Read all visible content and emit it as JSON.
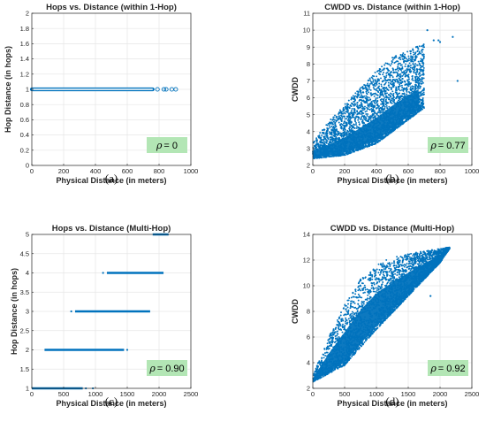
{
  "colors": {
    "series": "#0072BD",
    "annotation_bg": "#b3e6b5",
    "grid": "#e6e6e6",
    "axis": "#262626"
  },
  "chart_data": [
    {
      "id": "a",
      "type": "scatter",
      "title": "Hops vs. Distance (within 1-Hop)",
      "xlabel": "Physical Distance (in meters)",
      "ylabel": "Hop Distance (in hops)",
      "xlim": [
        0,
        1000
      ],
      "ylim": [
        0,
        2
      ],
      "xticks": [
        0,
        200,
        400,
        600,
        800,
        1000
      ],
      "yticks": [
        0,
        0.2,
        0.4,
        0.6,
        0.8,
        1,
        1.2,
        1.4,
        1.6,
        1.8,
        2
      ],
      "ytick_labels": [
        "0",
        "0.2",
        "0.4",
        "0.6",
        "0.8",
        "1",
        "1.2",
        "1.4",
        "1.6",
        "1.8",
        "2"
      ],
      "grid": true,
      "marker": "open-circle",
      "series": [
        {
          "bands": [
            {
              "y": 1,
              "x_range": [
                0,
                760
              ]
            }
          ],
          "points": [
            {
              "x": 790,
              "y": 1
            },
            {
              "x": 830,
              "y": 1
            },
            {
              "x": 845,
              "y": 1
            },
            {
              "x": 880,
              "y": 1
            },
            {
              "x": 905,
              "y": 1
            }
          ]
        }
      ],
      "annotation": {
        "symbol": "ρ",
        "text": "= 0",
        "position": "bottom-right"
      },
      "caption": "(a)"
    },
    {
      "id": "b",
      "type": "scatter",
      "title": "CWDD vs. Distance (within 1-Hop)",
      "xlabel": "Physical Distance (in meters)",
      "ylabel": "CWDD",
      "xlim": [
        0,
        1000
      ],
      "ylim": [
        2,
        11
      ],
      "xticks": [
        0,
        200,
        400,
        600,
        800,
        1000
      ],
      "yticks": [
        2,
        3,
        4,
        5,
        6,
        7,
        8,
        9,
        10,
        11
      ],
      "grid": true,
      "marker": "dot",
      "series": [
        {
          "cloud": {
            "x_range": [
              0,
              700
            ],
            "lower_edge": [
              [
                0,
                2.4
              ],
              [
                200,
                2.6
              ],
              [
                400,
                3.3
              ],
              [
                600,
                4.7
              ],
              [
                700,
                5.4
              ]
            ],
            "upper_edge": [
              [
                0,
                3.4
              ],
              [
                100,
                4.6
              ],
              [
                200,
                5.6
              ],
              [
                300,
                6.6
              ],
              [
                400,
                7.6
              ],
              [
                500,
                8.4
              ],
              [
                600,
                8.8
              ],
              [
                700,
                9.2
              ]
            ]
          },
          "points": [
            {
              "x": 720,
              "y": 10
            },
            {
              "x": 760,
              "y": 9.4
            },
            {
              "x": 790,
              "y": 9.4
            },
            {
              "x": 800,
              "y": 9.3
            },
            {
              "x": 880,
              "y": 9.6
            },
            {
              "x": 910,
              "y": 7
            },
            {
              "x": 690,
              "y": 8.2
            },
            {
              "x": 650,
              "y": 9.0
            }
          ]
        }
      ],
      "annotation": {
        "symbol": "ρ",
        "text": "= 0.77",
        "position": "bottom-right"
      },
      "caption": "(b)"
    },
    {
      "id": "c",
      "type": "scatter",
      "title": "Hops vs. Distance (Multi-Hop)",
      "xlabel": "Physical Distance (in meters)",
      "ylabel": "Hop Distance (in hops)",
      "xlim": [
        0,
        2500
      ],
      "ylim": [
        1,
        5
      ],
      "xticks": [
        0,
        500,
        1000,
        1500,
        2000,
        2500
      ],
      "yticks": [
        1,
        1.5,
        2,
        2.5,
        3,
        3.5,
        4,
        4.5,
        5
      ],
      "grid": true,
      "marker": "dot",
      "series": [
        {
          "bands": [
            {
              "y": 1,
              "x_range": [
                0,
                800
              ]
            },
            {
              "y": 2,
              "x_range": [
                200,
                1450
              ]
            },
            {
              "y": 3,
              "x_range": [
                680,
                1860
              ]
            },
            {
              "y": 4,
              "x_range": [
                1180,
                2070
              ]
            },
            {
              "y": 5,
              "x_range": [
                1900,
                2150
              ]
            }
          ],
          "points": [
            {
              "x": 850,
              "y": 1
            },
            {
              "x": 960,
              "y": 1
            },
            {
              "x": 1500,
              "y": 2
            },
            {
              "x": 620,
              "y": 3
            },
            {
              "x": 1120,
              "y": 4
            }
          ]
        }
      ],
      "annotation": {
        "symbol": "ρ",
        "text": "= 0.90",
        "position": "bottom-right"
      },
      "caption": "(c)"
    },
    {
      "id": "d",
      "type": "scatter",
      "title": "CWDD vs. Distance (Multi-Hop)",
      "xlabel": "Physical Distance (in meters)",
      "ylabel": "CWDD",
      "xlim": [
        0,
        2500
      ],
      "ylim": [
        2,
        14
      ],
      "xticks": [
        0,
        500,
        1000,
        1500,
        2000,
        2500
      ],
      "yticks": [
        2,
        4,
        6,
        8,
        10,
        12,
        14
      ],
      "grid": true,
      "marker": "dot",
      "series": [
        {
          "cloud": {
            "x_range": [
              0,
              2150
            ],
            "lower_edge": [
              [
                0,
                2.5
              ],
              [
                500,
                3.8
              ],
              [
                1000,
                6.6
              ],
              [
                1500,
                9.2
              ],
              [
                2000,
                11.8
              ],
              [
                2150,
                12.9
              ]
            ],
            "upper_edge": [
              [
                0,
                3.0
              ],
              [
                250,
                6.0
              ],
              [
                500,
                8.5
              ],
              [
                750,
                10.5
              ],
              [
                1000,
                11.7
              ],
              [
                1250,
                12.2
              ],
              [
                1500,
                12.5
              ],
              [
                1750,
                12.7
              ],
              [
                2000,
                12.9
              ],
              [
                2150,
                13.0
              ]
            ]
          },
          "points": [
            {
              "x": 1620,
              "y": 10.7
            },
            {
              "x": 1850,
              "y": 9.2
            },
            {
              "x": 1470,
              "y": 9.8
            }
          ]
        }
      ],
      "annotation": {
        "symbol": "ρ",
        "text": "= 0.92",
        "position": "bottom-right"
      },
      "caption": "(d)"
    }
  ]
}
